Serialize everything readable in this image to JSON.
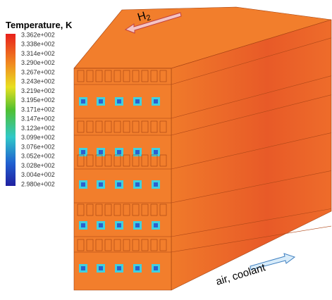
{
  "colorbar": {
    "title": "Temperature, K",
    "ticks": [
      "3.362e+002",
      "3.338e+002",
      "3.314e+002",
      "3.290e+002",
      "3.267e+002",
      "3.243e+002",
      "3.219e+002",
      "3.195e+002",
      "3.171e+002",
      "3.147e+002",
      "3.123e+002",
      "3.099e+002",
      "3.076e+002",
      "3.052e+002",
      "3.028e+002",
      "3.004e+002",
      "2.980e+002"
    ]
  },
  "annotations": {
    "hydrogen": {
      "label": "H",
      "subscript": "2"
    },
    "air": "air, coolant"
  }
}
